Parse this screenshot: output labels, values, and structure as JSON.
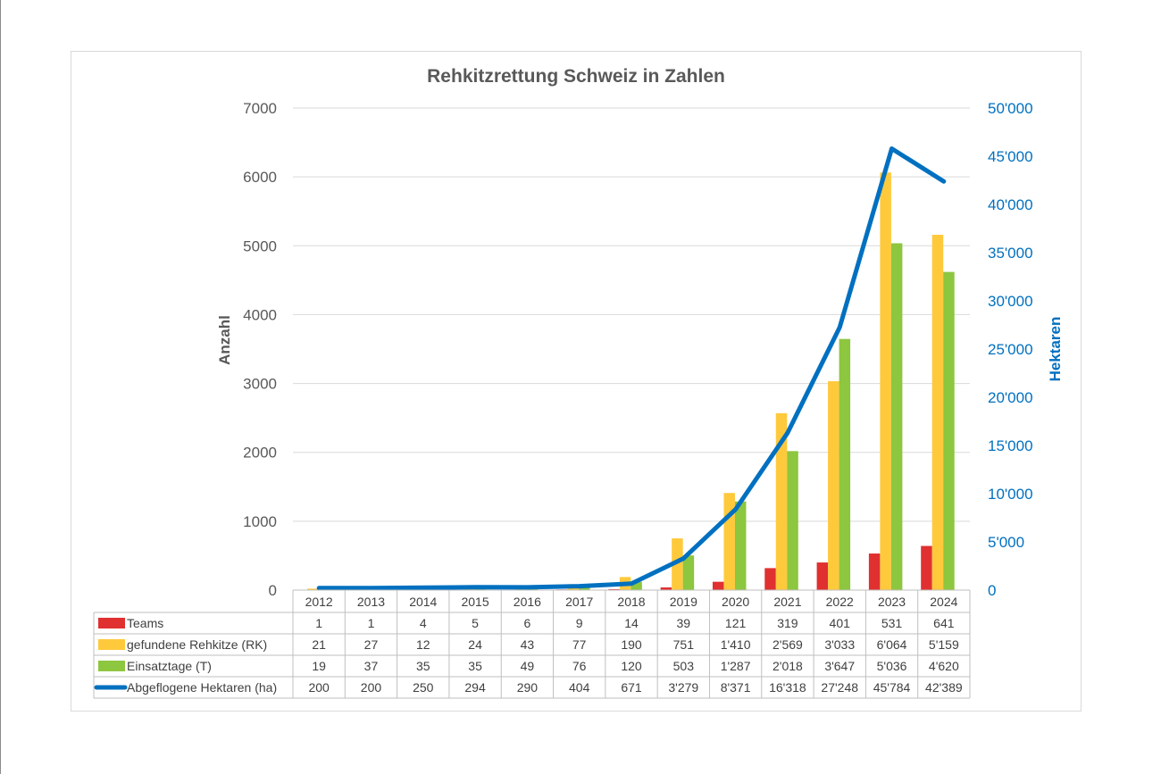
{
  "chart_data": {
    "type": "bar",
    "title": "Rehkitzrettung Schweiz in Zahlen",
    "categories": [
      "2012",
      "2013",
      "2014",
      "2015",
      "2016",
      "2017",
      "2018",
      "2019",
      "2020",
      "2021",
      "2022",
      "2023",
      "2024"
    ],
    "y_left": {
      "label": "Anzahl",
      "range": [
        0,
        7000
      ],
      "ticks": [
        "0",
        "1000",
        "2000",
        "3000",
        "4000",
        "5000",
        "6000",
        "7000"
      ]
    },
    "y_right": {
      "label": "Hektaren",
      "range": [
        0,
        50000
      ],
      "ticks": [
        "0",
        "5'000",
        "10'000",
        "15'000",
        "20'000",
        "25'000",
        "30'000",
        "35'000",
        "40'000",
        "45'000",
        "50'000"
      ]
    },
    "grid": true,
    "series": [
      {
        "name": "Teams",
        "kind": "bar",
        "axis": "left",
        "color": "#e03030",
        "values": [
          1,
          1,
          4,
          5,
          6,
          9,
          14,
          39,
          121,
          319,
          401,
          531,
          641
        ],
        "labels": [
          "1",
          "1",
          "4",
          "5",
          "6",
          "9",
          "14",
          "39",
          "121",
          "319",
          "401",
          "531",
          "641"
        ]
      },
      {
        "name": "gefundene Rehkitze (RK)",
        "kind": "bar",
        "axis": "left",
        "color": "#ffc93c",
        "values": [
          21,
          27,
          12,
          24,
          43,
          77,
          190,
          751,
          1410,
          2569,
          3033,
          6064,
          5159
        ],
        "labels": [
          "21",
          "27",
          "12",
          "24",
          "43",
          "77",
          "190",
          "751",
          "1'410",
          "2'569",
          "3'033",
          "6'064",
          "5'159"
        ]
      },
      {
        "name": "Einsatztage (T)",
        "kind": "bar",
        "axis": "left",
        "color": "#8dc63f",
        "values": [
          19,
          37,
          35,
          35,
          49,
          76,
          120,
          503,
          1287,
          2018,
          3647,
          5036,
          4620
        ],
        "labels": [
          "19",
          "37",
          "35",
          "35",
          "49",
          "76",
          "120",
          "503",
          "1'287",
          "2'018",
          "3'647",
          "5'036",
          "4'620"
        ]
      },
      {
        "name": "Abgeflogene Hektaren (ha)",
        "kind": "line",
        "axis": "right",
        "color": "#0070c0",
        "values": [
          200,
          200,
          250,
          294,
          290,
          404,
          671,
          3279,
          8371,
          16318,
          27248,
          45784,
          42389
        ],
        "labels": [
          "200",
          "200",
          "250",
          "294",
          "290",
          "404",
          "671",
          "3'279",
          "8'371",
          "16'318",
          "27'248",
          "45'784",
          "42'389"
        ]
      }
    ]
  }
}
